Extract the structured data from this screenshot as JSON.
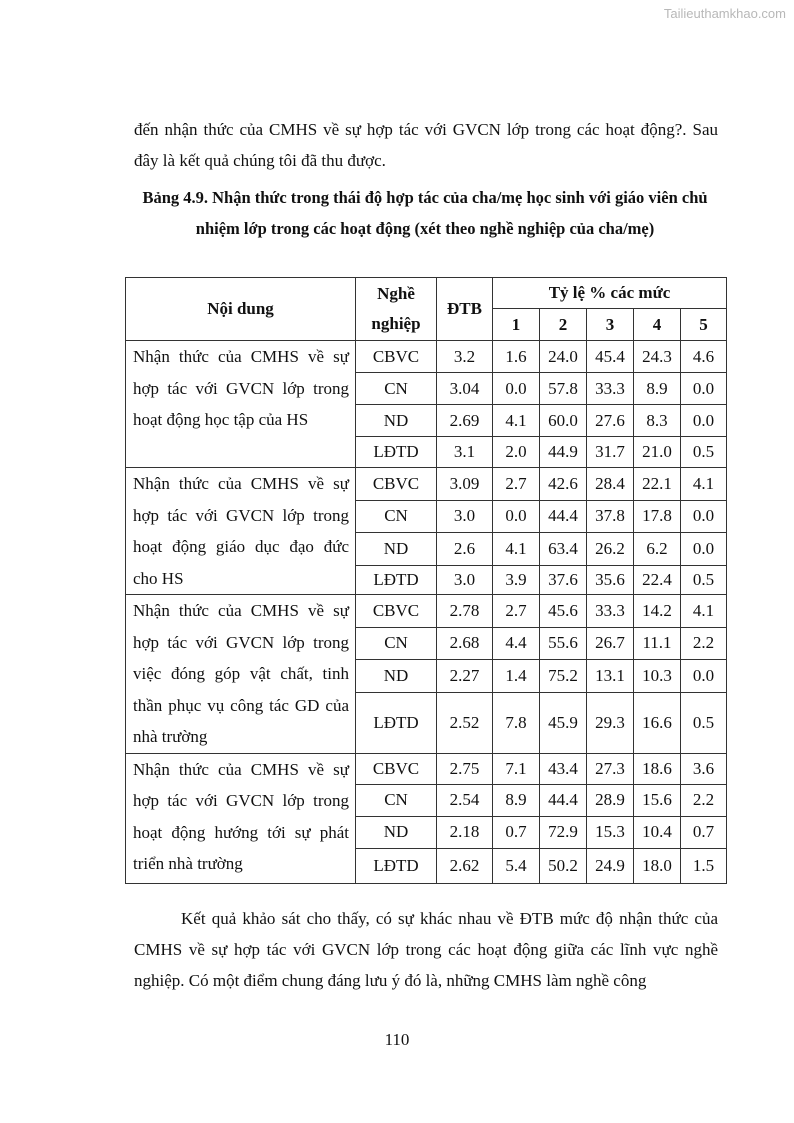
{
  "watermark": "Tailieuthamkhao.com",
  "intro_text": "đến nhận thức của CMHS về sự hợp tác với GVCN lớp trong các hoạt động?. Sau đây là kết quả chúng tôi đã thu được.",
  "caption": "Bảng 4.9. Nhận thức trong thái độ hợp tác của cha/mẹ học sinh với giáo viên chủ nhiệm lớp trong các hoạt động (xét theo nghề nghiệp của cha/mẹ)",
  "table": {
    "headers": {
      "content": "Nội dung",
      "job": "Nghề nghiệp",
      "dtb": "ĐTB",
      "rate": "Tỷ lệ % các mức",
      "levels": [
        "1",
        "2",
        "3",
        "4",
        "5"
      ]
    },
    "groups": [
      {
        "content": "Nhận thức của CMHS về sự hợp tác với GVCN lớp trong hoạt động học tập của HS",
        "rows": [
          {
            "job": "CBVC",
            "dtb": "3.2",
            "v": [
              "1.6",
              "24.0",
              "45.4",
              "24.3",
              "4.6"
            ]
          },
          {
            "job": "CN",
            "dtb": "3.04",
            "v": [
              "0.0",
              "57.8",
              "33.3",
              "8.9",
              "0.0"
            ]
          },
          {
            "job": "ND",
            "dtb": "2.69",
            "v": [
              "4.1",
              "60.0",
              "27.6",
              "8.3",
              "0.0"
            ]
          },
          {
            "job": "LĐTD",
            "dtb": "3.1",
            "v": [
              "2.0",
              "44.9",
              "31.7",
              "21.0",
              "0.5"
            ]
          }
        ]
      },
      {
        "content": "Nhận thức của CMHS về sự hợp tác với GVCN lớp trong hoạt động giáo dục đạo đức cho HS",
        "rows": [
          {
            "job": "CBVC",
            "dtb": "3.09",
            "v": [
              "2.7",
              "42.6",
              "28.4",
              "22.1",
              "4.1"
            ]
          },
          {
            "job": "CN",
            "dtb": "3.0",
            "v": [
              "0.0",
              "44.4",
              "37.8",
              "17.8",
              "0.0"
            ]
          },
          {
            "job": "ND",
            "dtb": "2.6",
            "v": [
              "4.1",
              "63.4",
              "26.2",
              "6.2",
              "0.0"
            ]
          },
          {
            "job": "LĐTD",
            "dtb": "3.0",
            "v": [
              "3.9",
              "37.6",
              "35.6",
              "22.4",
              "0.5"
            ]
          }
        ]
      },
      {
        "content": "Nhận thức của CMHS về sự hợp tác với GVCN lớp trong việc đóng góp vật chất, tinh thần phục vụ công tác GD của nhà trường",
        "rows": [
          {
            "job": "CBVC",
            "dtb": "2.78",
            "v": [
              "2.7",
              "45.6",
              "33.3",
              "14.2",
              "4.1"
            ]
          },
          {
            "job": "CN",
            "dtb": "2.68",
            "v": [
              "4.4",
              "55.6",
              "26.7",
              "11.1",
              "2.2"
            ]
          },
          {
            "job": "ND",
            "dtb": "2.27",
            "v": [
              "1.4",
              "75.2",
              "13.1",
              "10.3",
              "0.0"
            ]
          },
          {
            "job": "LĐTD",
            "dtb": "2.52",
            "v": [
              "7.8",
              "45.9",
              "29.3",
              "16.6",
              "0.5"
            ]
          }
        ]
      },
      {
        "content": "Nhận thức của CMHS về sự hợp tác với GVCN lớp trong hoạt động hướng tới sự phát triển nhà trường",
        "rows": [
          {
            "job": "CBVC",
            "dtb": "2.75",
            "v": [
              "7.1",
              "43.4",
              "27.3",
              "18.6",
              "3.6"
            ]
          },
          {
            "job": "CN",
            "dtb": "2.54",
            "v": [
              "8.9",
              "44.4",
              "28.9",
              "15.6",
              "2.2"
            ]
          },
          {
            "job": "ND",
            "dtb": "2.18",
            "v": [
              "0.7",
              "72.9",
              "15.3",
              "10.4",
              "0.7"
            ]
          },
          {
            "job": "LĐTD",
            "dtb": "2.62",
            "v": [
              "5.4",
              "50.2",
              "24.9",
              "18.0",
              "1.5"
            ]
          }
        ]
      }
    ]
  },
  "body_text": "Kết quả khảo sát cho thấy, có sự khác nhau về ĐTB mức độ nhận thức của CMHS về sự hợp tác với GVCN lớp trong các hoạt động giữa các lĩnh vực nghề nghiệp. Có một điểm chung đáng lưu ý đó là, những CMHS làm nghề công",
  "page_number": "110"
}
